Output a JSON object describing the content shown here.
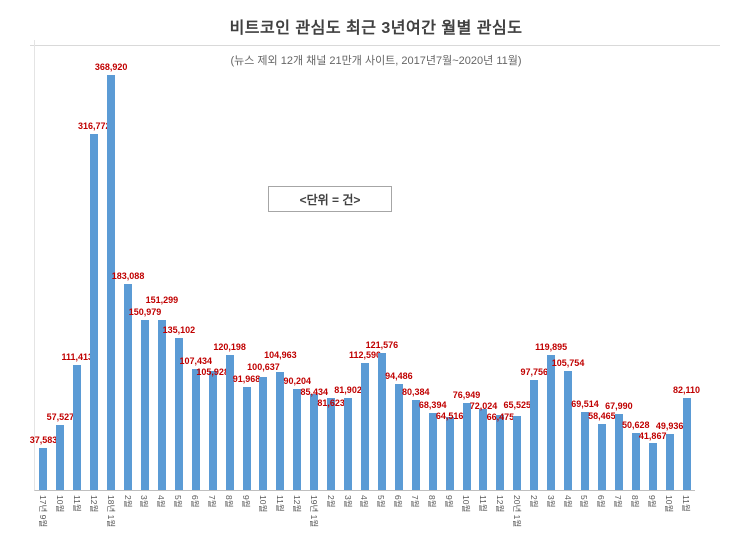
{
  "chart_data": {
    "type": "bar",
    "title": "비트코인 관심도 최근 3년여간 월별 관심도",
    "subtitle": "(뉴스 제외 12개 채널 21만개 사이트, 2017년7월~2020년 11월)",
    "annotation": "<단위 = 건>",
    "unit": "건",
    "categories": [
      "17년 9월",
      "10월",
      "11월",
      "12월",
      "18년 1월",
      "2월",
      "3월",
      "4월",
      "5월",
      "6월",
      "7월",
      "8월",
      "9월",
      "10월",
      "11월",
      "12월",
      "19년 1월",
      "2월",
      "3월",
      "4월",
      "5월",
      "6월",
      "7월",
      "8월",
      "9월",
      "10월",
      "11월",
      "12월",
      "20년 1월",
      "2월",
      "3월",
      "4월",
      "5월",
      "6월",
      "7월",
      "8월",
      "9월",
      "10월",
      "11월"
    ],
    "values": [
      37583,
      57527,
      111413,
      316772,
      368920,
      183088,
      150979,
      151299,
      135102,
      107434,
      105928,
      120198,
      91968,
      100637,
      104963,
      90204,
      85434,
      81623,
      81902,
      112590,
      121576,
      94486,
      80384,
      68394,
      64516,
      76949,
      72024,
      66475,
      65525,
      97756,
      119895,
      105754,
      69514,
      58465,
      67990,
      50628,
      41867,
      49936,
      82110
    ],
    "ylim": [
      0,
      400000
    ],
    "grid": false,
    "legend": "none",
    "data_labels": true,
    "colors": {
      "bar": "#5B9BD5",
      "data_label": "#C00000",
      "title": "#404040",
      "subtitle": "#666666",
      "axis_line": "#BFBFBF",
      "tick_label": "#595959"
    }
  }
}
